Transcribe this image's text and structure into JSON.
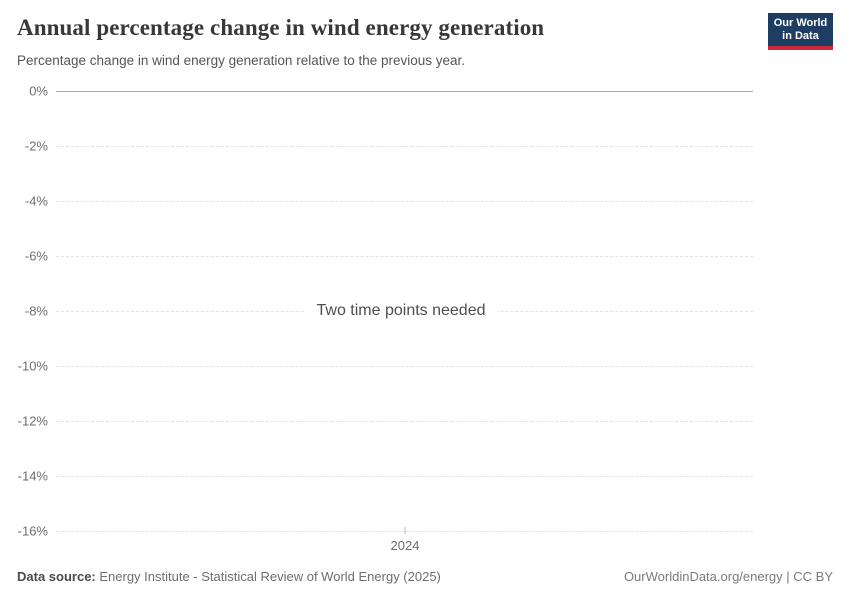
{
  "header": {
    "title": "Annual percentage change in wind energy generation",
    "subtitle": "Percentage change in wind energy generation relative to the previous year.",
    "logo": {
      "line1": "Our World",
      "line2": "in Data",
      "bg_color": "#1d3d63",
      "accent_color": "#cc2a36"
    }
  },
  "chart_data": {
    "type": "line",
    "title": "Annual percentage change in wind energy generation",
    "subtitle": "Percentage change in wind energy generation relative to the previous year.",
    "series": [],
    "categories": [
      "2024"
    ],
    "x_ticks": [
      "2024"
    ],
    "y_ticks": [
      "0%",
      "-2%",
      "-4%",
      "-6%",
      "-8%",
      "-10%",
      "-12%",
      "-14%",
      "-16%"
    ],
    "ylim": [
      -16,
      0
    ],
    "xlabel": "",
    "ylabel": "",
    "grid": true,
    "legend": "none",
    "empty_state_message": "Two time points needed",
    "colors": {
      "zero_line": "#a8a8a8",
      "gridline": "#e2e2e2",
      "tick_label": "#6e6e6e"
    }
  },
  "footer": {
    "data_source_label": "Data source:",
    "data_source_value": " Energy Institute - Statistical Review of World Energy (2025)",
    "attribution": "OurWorldinData.org/energy | CC BY"
  }
}
